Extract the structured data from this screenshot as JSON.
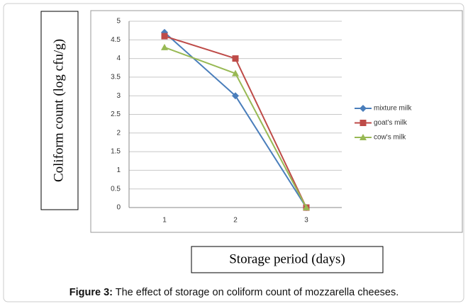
{
  "chart_data": {
    "type": "line",
    "x_label": "Storage period (days)",
    "y_label": "Coliform count (log cfu/g)",
    "figure_label": "Figure 3:",
    "caption": "The effect of storage on coliform count of mozzarella cheeses.",
    "categories": [
      "1",
      "2",
      "3"
    ],
    "series": [
      {
        "name": "mixture milk",
        "color": "#4a7ebb",
        "marker": "diamond",
        "values": [
          4.7,
          3,
          0
        ]
      },
      {
        "name": "goat's milk",
        "color": "#be4b48",
        "marker": "square",
        "values": [
          4.6,
          4,
          0
        ]
      },
      {
        "name": "cow's milk",
        "color": "#98b954",
        "marker": "triangle",
        "values": [
          4.3,
          3.6,
          0
        ]
      }
    ],
    "ylim": [
      0,
      5
    ],
    "yticks": [
      0,
      0.5,
      1,
      1.5,
      2,
      2.5,
      3,
      3.5,
      4,
      4.5,
      5
    ],
    "grid": true,
    "legend": "right"
  }
}
